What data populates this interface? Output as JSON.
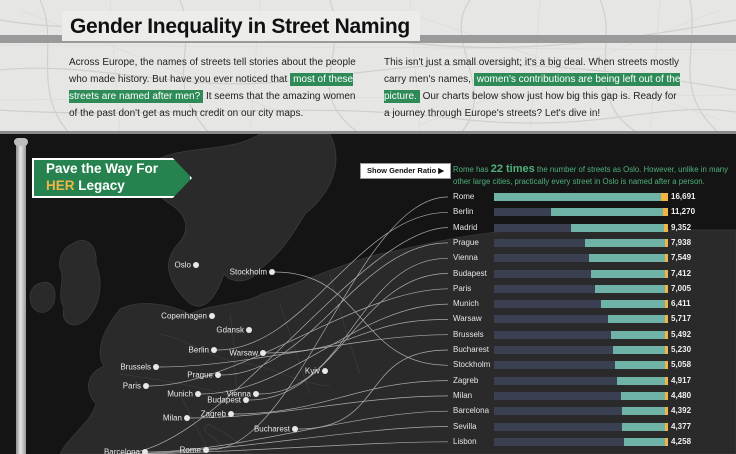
{
  "header": {
    "title": "Gender Inequality in Street Naming"
  },
  "intro": {
    "left_1": "Across Europe, the names of streets tell stories about the people who made history. But have you ever noticed that ",
    "left_hl": "most of these streets are named after men?",
    "left_2": " It seems that the amazing women of the past don't get as much credit on our city maps.",
    "right_1": "This isn't just a small oversight; it's a big deal. When streets mostly carry men's names, ",
    "right_hl": "women's contributions are being left out of the picture.",
    "right_2": " Our charts below show just how big this gap is. Ready for a journey through Europe's streets? Let's dive in!"
  },
  "sign": {
    "line1": "Pave the Way For",
    "her": "HER",
    "line2_rest": " Legacy"
  },
  "controls": {
    "show_ratio_label": "Show Gender Ratio",
    "play_icon": "play-triangle-icon"
  },
  "caption": {
    "pre": "Rome has ",
    "highlight": "22 times",
    "post": " the number of streets as Oslo. However, unlike in many other large cities, practically every street in Oslo is named after a person."
  },
  "colors": {
    "male_bar": "#6fb3a7",
    "female_bar": "#f2b544",
    "track": "#3a3f52",
    "accent_green": "#2e8b57"
  },
  "map_cities": [
    {
      "name": "Oslo"
    },
    {
      "name": "Stockholm"
    },
    {
      "name": "Copenhagen"
    },
    {
      "name": "Gdansk"
    },
    {
      "name": "Berlin"
    },
    {
      "name": "Warsaw"
    },
    {
      "name": "Brussels"
    },
    {
      "name": "Prague"
    },
    {
      "name": "Paris"
    },
    {
      "name": "Munich"
    },
    {
      "name": "Vienna"
    },
    {
      "name": "Budapest"
    },
    {
      "name": "Kyiv"
    },
    {
      "name": "Milan"
    },
    {
      "name": "Zagreb"
    },
    {
      "name": "Bucharest"
    },
    {
      "name": "Rome"
    },
    {
      "name": "Barcelona"
    }
  ],
  "chart_data": {
    "type": "bar",
    "orientation": "horizontal",
    "categories": [
      "Rome",
      "Berlin",
      "Madrid",
      "Prague",
      "Vienna",
      "Budapest",
      "Paris",
      "Munich",
      "Warsaw",
      "Brussels",
      "Bucharest",
      "Stockholm",
      "Zagreb",
      "Milan",
      "Barcelona",
      "Sevilla",
      "Lisbon"
    ],
    "values": [
      16691,
      11270,
      9352,
      7938,
      7549,
      7412,
      7005,
      6411,
      5717,
      5492,
      5230,
      5058,
      4917,
      4480,
      4392,
      4377,
      4258
    ],
    "value_labels": [
      "16,691",
      "11,270",
      "9,352",
      "7,938",
      "7,549",
      "7,412",
      "7,005",
      "6,411",
      "5,717",
      "5,492",
      "5,230",
      "5,058",
      "4,917",
      "4,480",
      "4,392",
      "4,377",
      "4,258"
    ],
    "xlim": [
      0,
      16691
    ],
    "legend": "none"
  }
}
